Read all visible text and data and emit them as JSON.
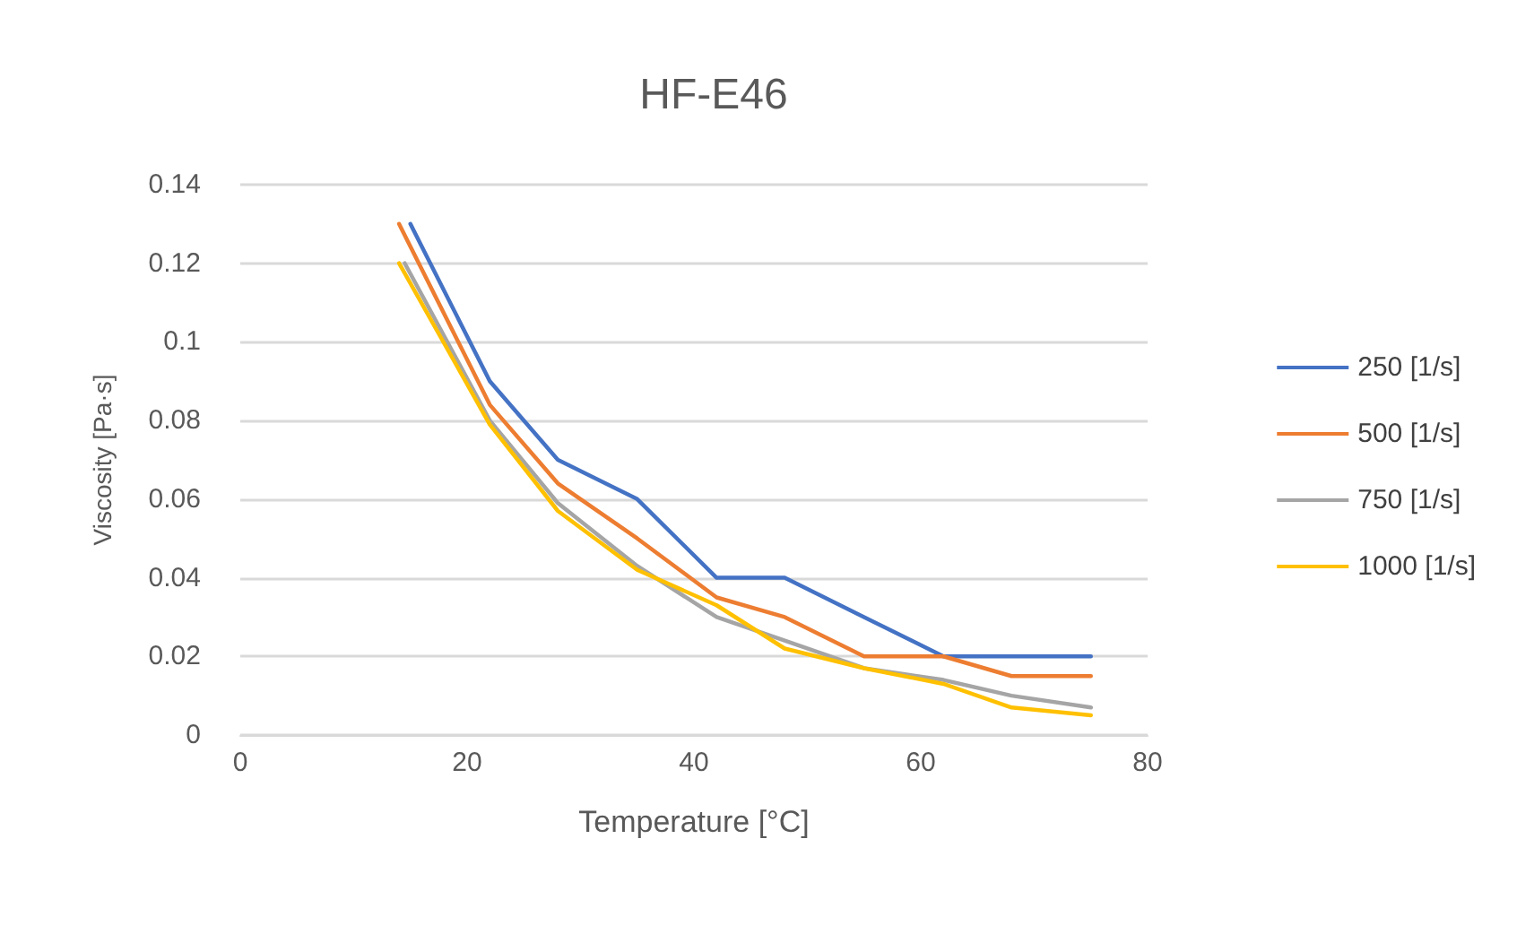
{
  "chart_data": {
    "type": "line",
    "title": "HF-E46",
    "xlabel": "Temperature [°C]",
    "ylabel": "Viscosity [Pa·s]",
    "x": [
      14,
      22,
      28,
      35,
      42,
      48,
      55,
      62,
      68,
      75
    ],
    "series": [
      {
        "name": "250 [1/s]",
        "color": "#4472c4",
        "x": [
          15,
          22,
          28,
          35,
          42,
          48,
          55,
          62,
          68,
          75
        ],
        "values": [
          0.13,
          0.09,
          0.07,
          0.06,
          0.04,
          0.04,
          0.03,
          0.02,
          0.02,
          0.02
        ]
      },
      {
        "name": "500 [1/s]",
        "color": "#ed7d31",
        "values": [
          0.13,
          0.084,
          0.064,
          0.05,
          0.035,
          0.03,
          0.02,
          0.02,
          0.015,
          0.015
        ]
      },
      {
        "name": "750 [1/s]",
        "color": "#a5a5a5",
        "x": [
          14.5,
          22,
          28,
          35,
          42,
          48,
          55,
          62,
          68,
          75
        ],
        "values": [
          0.12,
          0.08,
          0.059,
          0.043,
          0.03,
          0.024,
          0.017,
          0.014,
          0.01,
          0.007
        ]
      },
      {
        "name": "1000 [1/s]",
        "color": "#ffc000",
        "values": [
          0.12,
          0.079,
          0.057,
          0.042,
          0.033,
          0.022,
          0.017,
          0.013,
          0.007,
          0.005
        ]
      }
    ],
    "xlim": [
      0,
      80
    ],
    "xticks": [
      0,
      20,
      40,
      60,
      80
    ],
    "ylim": [
      0,
      0.14
    ],
    "yticks": [
      0,
      0.02,
      0.04,
      0.06,
      0.08,
      0.1,
      0.12,
      0.14
    ],
    "grid": "y",
    "legend": "right",
    "marker": "none",
    "line_style": "solid"
  }
}
